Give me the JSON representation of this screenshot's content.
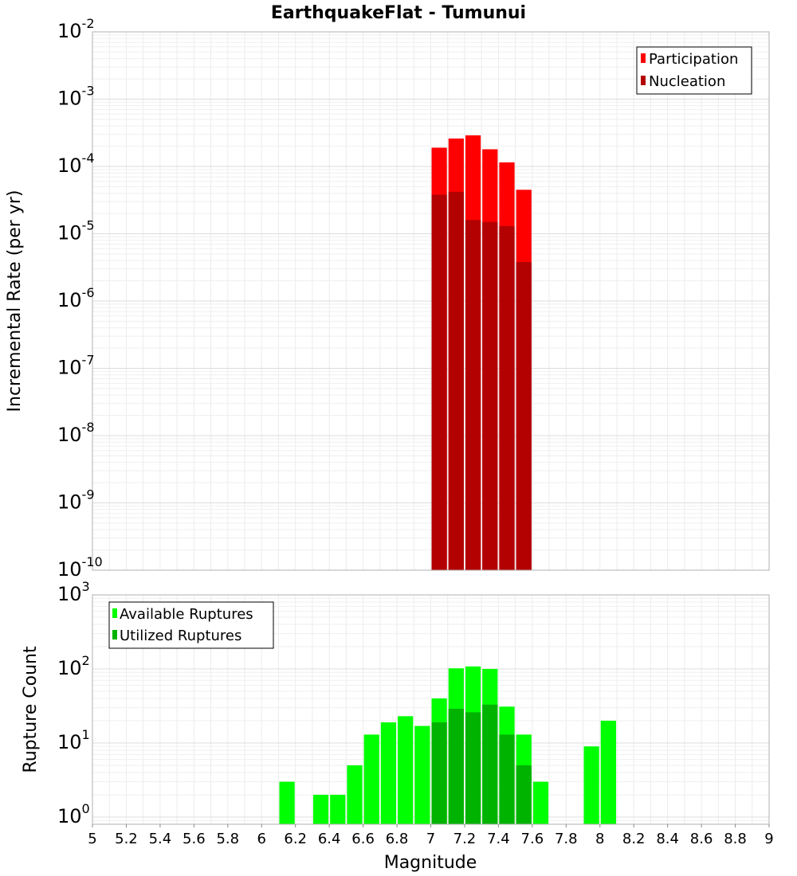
{
  "chart_data": [
    {
      "type": "bar",
      "title": "EarthquakeFlat - Tumunui",
      "xlabel": "",
      "ylabel": "Incremental Rate (per yr)",
      "yscale": "log",
      "ylim": [
        1e-10,
        0.01
      ],
      "xlim": [
        5,
        9
      ],
      "bin_width": 0.1,
      "y_tick_base": "10",
      "y_tick_exponents": [
        "-10",
        "-9",
        "-8",
        "-7",
        "-6",
        "-5",
        "-4",
        "-3",
        "-2"
      ],
      "legend_position": "top-right",
      "series": [
        {
          "name": "Participation",
          "color": "#ff0000",
          "x": [
            7.05,
            7.15,
            7.25,
            7.35,
            7.45,
            7.55
          ],
          "values": [
            0.00019,
            0.00026,
            0.00029,
            0.00018,
            0.000115,
            4.5e-05
          ]
        },
        {
          "name": "Nucleation",
          "color": "#b30000",
          "x": [
            7.05,
            7.15,
            7.25,
            7.35,
            7.45,
            7.55
          ],
          "values": [
            3.8e-05,
            4.2e-05,
            1.6e-05,
            1.5e-05,
            1.3e-05,
            3.8e-06
          ]
        }
      ]
    },
    {
      "type": "bar",
      "title": "",
      "xlabel": "Magnitude",
      "ylabel": "Rupture Count",
      "yscale": "log",
      "ylim": [
        0.8,
        1000
      ],
      "xlim": [
        5,
        9
      ],
      "bin_width": 0.1,
      "x_ticks": [
        "5",
        "5.2",
        "5.4",
        "5.6",
        "5.8",
        "6",
        "6.2",
        "6.4",
        "6.6",
        "6.8",
        "7",
        "7.2",
        "7.4",
        "7.6",
        "7.8",
        "8",
        "8.2",
        "8.4",
        "8.6",
        "8.8",
        "9"
      ],
      "y_tick_base": "10",
      "y_tick_exponents": [
        "0",
        "1",
        "2",
        "3"
      ],
      "legend_position": "top-left",
      "series": [
        {
          "name": "Available Ruptures",
          "color": "#00ff00",
          "x": [
            6.15,
            6.35,
            6.45,
            6.55,
            6.65,
            6.75,
            6.85,
            6.95,
            7.05,
            7.15,
            7.25,
            7.35,
            7.45,
            7.55,
            7.65,
            7.95,
            8.05
          ],
          "values": [
            3,
            2,
            2,
            5,
            13,
            19,
            23,
            17,
            40,
            102,
            108,
            100,
            31,
            13,
            3,
            9,
            20
          ]
        },
        {
          "name": "Utilized Ruptures",
          "color": "#00b300",
          "x": [
            7.05,
            7.15,
            7.25,
            7.35,
            7.45,
            7.55
          ],
          "values": [
            19,
            29,
            26,
            33,
            13,
            5
          ]
        }
      ]
    }
  ]
}
